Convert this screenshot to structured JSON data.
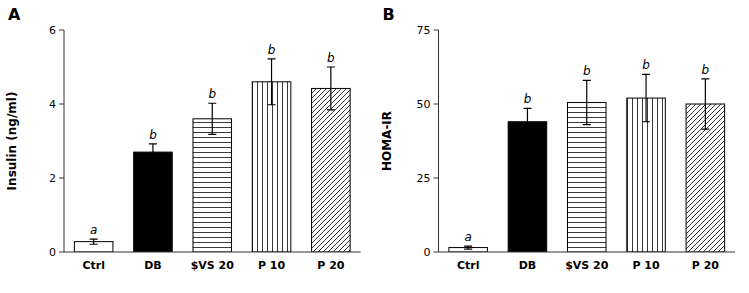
{
  "chart_data": [
    {
      "type": "bar",
      "title": "A",
      "categories": [
        "Ctrl",
        "DB",
        "$VS 20",
        "P 10",
        "P 20"
      ],
      "values": [
        0.28,
        2.7,
        3.6,
        4.6,
        4.42
      ],
      "errors": [
        0.07,
        0.22,
        0.42,
        0.62,
        0.58
      ],
      "letters": [
        "a",
        "b",
        "b",
        "b",
        "b"
      ],
      "ylabel": "Insulin (ng/ml)",
      "ylim": [
        0,
        6
      ],
      "yticks": [
        0,
        2,
        4,
        6
      ],
      "colors": [
        "white",
        "black",
        "white",
        "white",
        "white"
      ],
      "grid": false
    },
    {
      "type": "bar",
      "title": "B",
      "categories": [
        "Ctrl",
        "DB",
        "$VS 20",
        "P 10",
        "P 20"
      ],
      "values": [
        1.5,
        44.0,
        50.5,
        52.0,
        50.0
      ],
      "errors": [
        0.5,
        4.5,
        7.5,
        8.0,
        8.5
      ],
      "letters": [
        "a",
        "b",
        "b",
        "b",
        "b"
      ],
      "ylabel": "HOMA-IR",
      "ylim": [
        0,
        75
      ],
      "yticks": [
        0,
        25,
        50,
        75
      ],
      "colors": [
        "white",
        "black",
        "white",
        "white",
        "white"
      ],
      "grid": false
    }
  ]
}
